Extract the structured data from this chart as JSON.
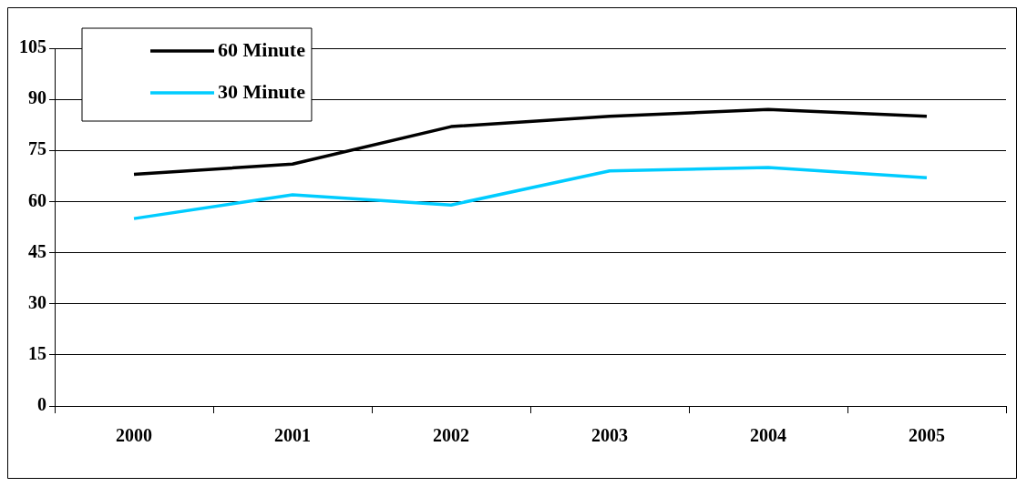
{
  "chart_data": {
    "type": "line",
    "categories": [
      "2000",
      "2001",
      "2002",
      "2003",
      "2004",
      "2005"
    ],
    "series": [
      {
        "name": "60 Minute",
        "color": "#000000",
        "values": [
          68,
          71,
          82,
          85,
          87,
          85
        ]
      },
      {
        "name": "30 Minute",
        "color": "#00ccff",
        "values": [
          55,
          62,
          59,
          69,
          70,
          67
        ]
      }
    ],
    "ylim": [
      0,
      105
    ],
    "yticks": [
      0,
      15,
      30,
      45,
      60,
      75,
      90,
      105
    ],
    "grid": "y",
    "legend": "top left",
    "marker": "none",
    "line_style": "solid"
  }
}
